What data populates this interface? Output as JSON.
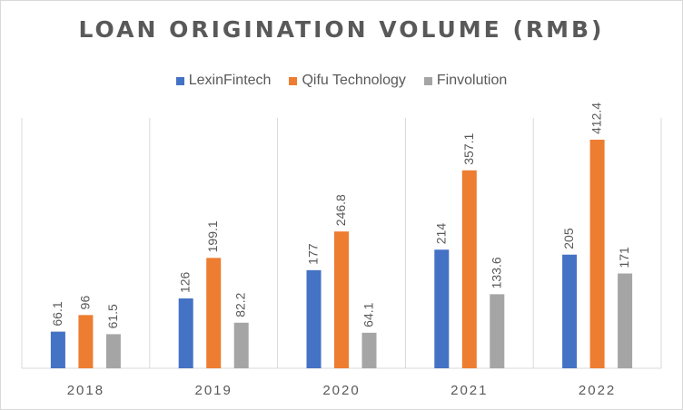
{
  "chart_data": {
    "type": "bar",
    "title": "LOAN ORIGINATION VOLUME (RMB)",
    "categories": [
      "2018",
      "2019",
      "2020",
      "2021",
      "2022"
    ],
    "series": [
      {
        "name": "LexinFintech",
        "color": "#4472c4",
        "values": [
          66.1,
          126,
          177,
          214,
          205
        ],
        "labels": [
          "66.1",
          "126",
          "177",
          "214",
          "205"
        ]
      },
      {
        "name": "Qifu Technology",
        "color": "#ed7d31",
        "values": [
          96,
          199.1,
          246.8,
          357.1,
          412.4
        ],
        "labels": [
          "96",
          "199.1",
          "246.8",
          "357.1",
          "412.4"
        ]
      },
      {
        "name": "Finvolution",
        "color": "#a5a5a5",
        "values": [
          61.5,
          82.2,
          64.1,
          133.6,
          171
        ],
        "labels": [
          "61.5",
          "82.2",
          "64.1",
          "133.6",
          "171"
        ]
      }
    ],
    "ylim": [
      0,
      412.4
    ],
    "legend_position": "top",
    "data_labels": true,
    "grid": false,
    "category_separators": true
  }
}
